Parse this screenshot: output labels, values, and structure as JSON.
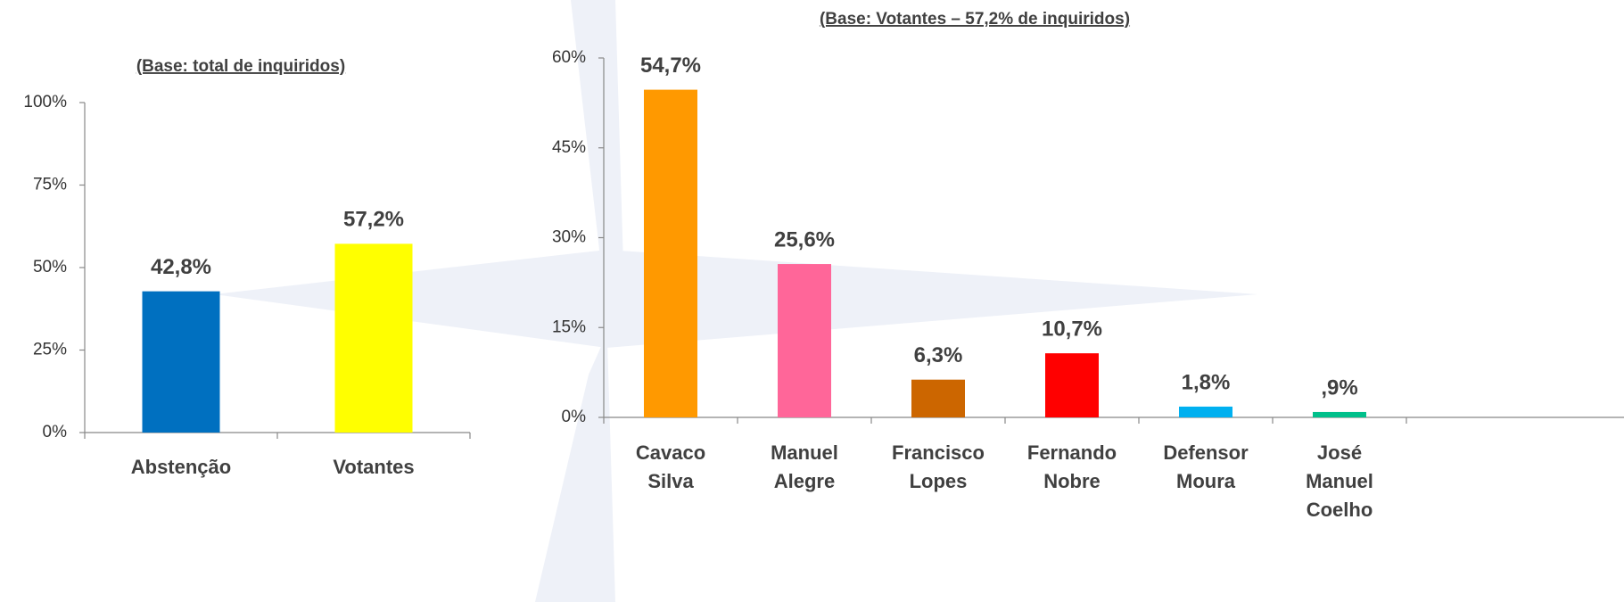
{
  "chart_data": [
    {
      "type": "bar",
      "subtitle": "(Base: total de inquiridos)",
      "categories": [
        [
          "Abstenção"
        ],
        [
          "Votantes"
        ]
      ],
      "values": [
        42.8,
        57.2
      ],
      "value_labels": [
        "42,8%",
        "57,2%"
      ],
      "colors": [
        "#0070c0",
        "#ffff00"
      ],
      "ylim": [
        0,
        100
      ],
      "yticks": [
        {
          "value": 0,
          "label": "0%"
        },
        {
          "value": 25,
          "label": "25%"
        },
        {
          "value": 50,
          "label": "50%"
        },
        {
          "value": 75,
          "label": "75%"
        },
        {
          "value": 100,
          "label": "100%"
        }
      ]
    },
    {
      "type": "bar",
      "subtitle": "(Base: Votantes – 57,2% de inquiridos)",
      "categories": [
        [
          "Cavaco",
          "Silva"
        ],
        [
          "Manuel",
          "Alegre"
        ],
        [
          "Francisco",
          "Lopes"
        ],
        [
          "Fernando",
          "Nobre"
        ],
        [
          "Defensor",
          "Moura"
        ],
        [
          "José",
          "Manuel",
          "Coelho"
        ]
      ],
      "values": [
        54.7,
        25.6,
        6.3,
        10.7,
        1.8,
        0.9
      ],
      "value_labels": [
        "54,7%",
        "25,6%",
        "6,3%",
        "10,7%",
        "1,8%",
        ",9%"
      ],
      "colors": [
        "#ff9900",
        "#ff6699",
        "#cc6600",
        "#ff0000",
        "#00b0f0",
        "#00c08b"
      ],
      "ylim": [
        0,
        60
      ],
      "yticks": [
        {
          "value": 0,
          "label": "0%"
        },
        {
          "value": 15,
          "label": "15%"
        },
        {
          "value": 30,
          "label": "30%"
        },
        {
          "value": 45,
          "label": "45%"
        },
        {
          "value": 60,
          "label": "60%"
        }
      ]
    }
  ]
}
